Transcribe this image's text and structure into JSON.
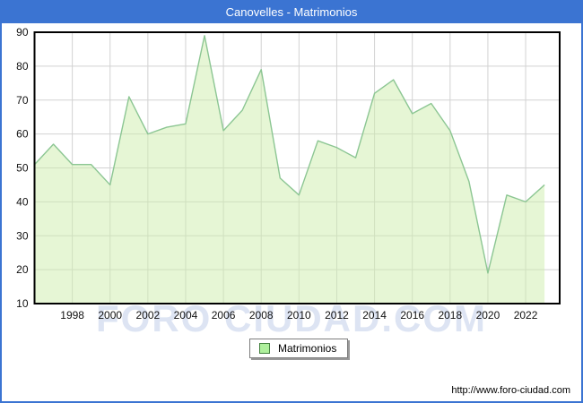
{
  "window": {
    "title": "Canovelles - Matrimonios"
  },
  "legend": {
    "label": "Matrimonios"
  },
  "watermark": {
    "text": "FORO CIUDAD.COM"
  },
  "footer": {
    "url": "http://www.foro-ciudad.com"
  },
  "colors": {
    "frame_border": "#3b74d2",
    "titlebar_bg": "#3b74d2",
    "titlebar_text": "#ffffff",
    "plot_border": "#000000",
    "grid": "#d2d2d2",
    "area_fill": "#cdeeab",
    "area_stroke": "#8cc693",
    "legend_swatch_fill": "#aef09c",
    "legend_swatch_border": "#44813f",
    "watermark": "#dde4f3",
    "tick_text": "#111111"
  },
  "chart_data": {
    "type": "area",
    "title": "Canovelles - Matrimonios",
    "x": [
      1996,
      1997,
      1998,
      1999,
      2000,
      2001,
      2002,
      2003,
      2004,
      2005,
      2006,
      2007,
      2008,
      2009,
      2010,
      2011,
      2012,
      2013,
      2014,
      2015,
      2016,
      2017,
      2018,
      2019,
      2020,
      2021,
      2022,
      2023
    ],
    "series": [
      {
        "name": "Matrimonios",
        "values": [
          51,
          57,
          51,
          51,
          45,
          71,
          60,
          62,
          63,
          89,
          61,
          67,
          79,
          47,
          42,
          58,
          56,
          53,
          72,
          76,
          66,
          69,
          61,
          46,
          19,
          42,
          40,
          45
        ]
      }
    ],
    "ylim": [
      10,
      90
    ],
    "ytick_step": 10,
    "xticks": [
      1998,
      2000,
      2002,
      2004,
      2006,
      2008,
      2010,
      2012,
      2014,
      2016,
      2018,
      2020,
      2022
    ],
    "grid": true,
    "legend_position": "bottom-center"
  }
}
